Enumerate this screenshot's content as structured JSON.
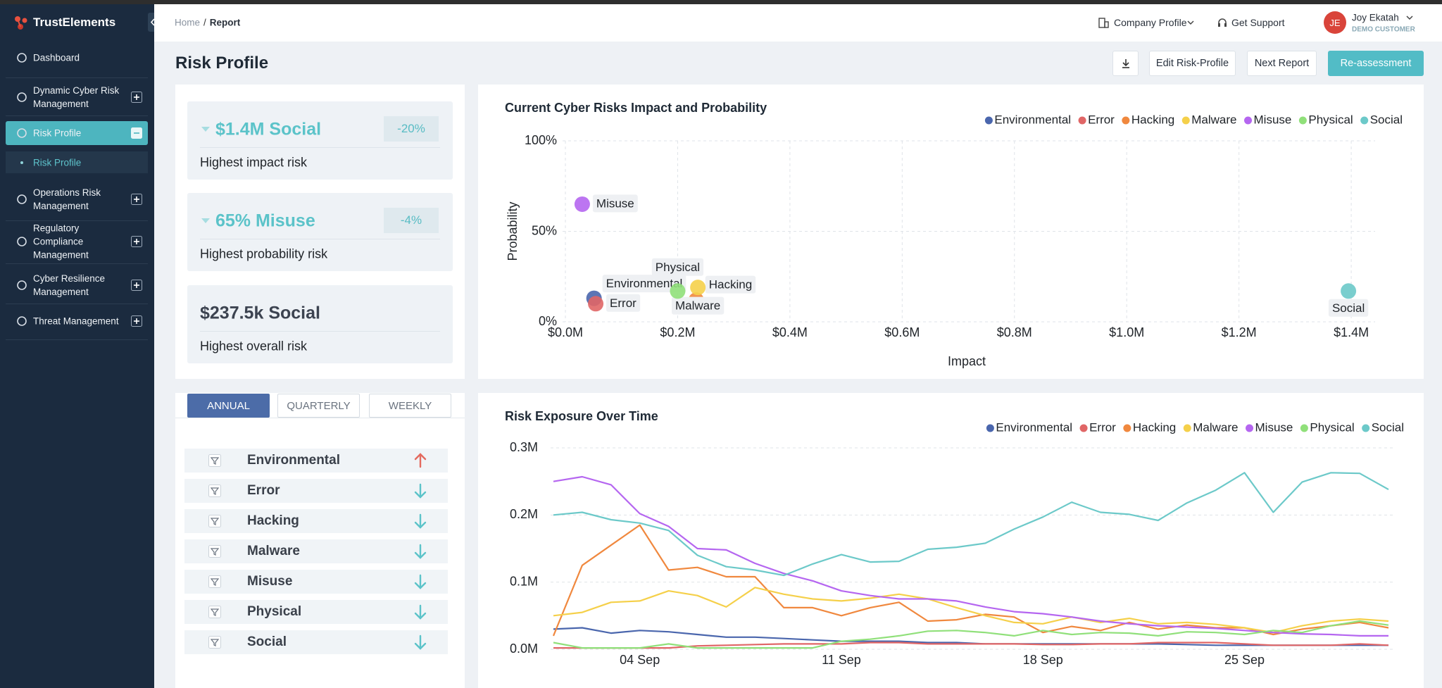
{
  "sidebar": {
    "brand": "TrustElements",
    "items": [
      {
        "label": "Dashboard",
        "expandable": false
      },
      {
        "label": "Dynamic Cyber Risk Management",
        "expandable": true
      },
      {
        "label": "Risk Profile",
        "expandable": true,
        "active": true,
        "subitems": [
          "Risk Profile"
        ]
      },
      {
        "label": "Operations Risk Management",
        "expandable": true
      },
      {
        "label": "Regulatory Compliance Management",
        "expandable": true
      },
      {
        "label": "Cyber Resilience Management",
        "expandable": true
      },
      {
        "label": "Threat Management",
        "expandable": true
      }
    ]
  },
  "header": {
    "breadcrumb": [
      "Home",
      "Report"
    ],
    "breadcrumb_separator": "/",
    "company_menu": "Company Profile",
    "support": "Get Support",
    "user": {
      "initials": "JE",
      "name": "Joy Ekatah",
      "role": "DEMO CUSTOMER"
    }
  },
  "title": "Risk Profile",
  "actions": [
    "Edit Risk-Profile",
    "Next Report",
    "Re-assessment"
  ],
  "summary_cards": [
    {
      "headline": "$1.4M Social",
      "change": "-20%",
      "caption": "Highest impact risk",
      "highlight": true
    },
    {
      "headline": "65% Misuse",
      "change": "-4%",
      "caption": "Highest probability risk",
      "highlight": true
    },
    {
      "headline": "$237.5k Social",
      "caption": "Highest overall risk",
      "highlight": false
    }
  ],
  "tabs": {
    "items": [
      "ANNUAL",
      "QUARTERLY",
      "WEEKLY"
    ],
    "active": 0
  },
  "risk_trends": [
    {
      "name": "Environmental",
      "trend": "up"
    },
    {
      "name": "Error",
      "trend": "down"
    },
    {
      "name": "Hacking",
      "trend": "down"
    },
    {
      "name": "Malware",
      "trend": "down"
    },
    {
      "name": "Misuse",
      "trend": "down"
    },
    {
      "name": "Physical",
      "trend": "down"
    },
    {
      "name": "Social",
      "trend": "down"
    }
  ],
  "chart_data": [
    {
      "type": "scatter",
      "title": "Current Cyber Risks Impact and Probability",
      "x_label": "Impact",
      "y_label": "Probability",
      "xlim": [
        0,
        1.43
      ],
      "ylim": [
        0,
        100
      ],
      "xticks": [
        {
          "value": 0,
          "label": "$0.0M"
        },
        {
          "value": 0.2,
          "label": "$0.2M"
        },
        {
          "value": 0.4,
          "label": "$0.4M"
        },
        {
          "value": 0.6,
          "label": "$0.6M"
        },
        {
          "value": 0.8,
          "label": "$0.8M"
        },
        {
          "value": 1.0,
          "label": "$1.0M"
        },
        {
          "value": 1.2,
          "label": "$1.2M"
        },
        {
          "value": 1.4,
          "label": "$1.4M"
        }
      ],
      "yticks": [
        {
          "value": 0,
          "label": "0%"
        },
        {
          "value": 50,
          "label": "50%"
        },
        {
          "value": 100,
          "label": "100%"
        }
      ],
      "grid": true,
      "legend": "top-right",
      "series": [
        {
          "name": "Environmental",
          "color": "#4a66ad",
          "x": [
            0.051
          ],
          "values": [
            13
          ]
        },
        {
          "name": "Error",
          "color": "#e06666",
          "x": [
            0.054
          ],
          "values": [
            10
          ]
        },
        {
          "name": "Hacking",
          "color": "#f0883e",
          "x": [
            0.233
          ],
          "values": [
            12
          ]
        },
        {
          "name": "Malware",
          "color": "#f5d04a",
          "x": [
            0.236
          ],
          "values": [
            19
          ]
        },
        {
          "name": "Misuse",
          "color": "#b566f0",
          "x": [
            0.03
          ],
          "values": [
            65
          ]
        },
        {
          "name": "Physical",
          "color": "#90e07a",
          "x": [
            0.2
          ],
          "values": [
            17
          ]
        },
        {
          "name": "Social",
          "color": "#6cc9c9",
          "x": [
            1.395
          ],
          "values": [
            17
          ]
        }
      ]
    },
    {
      "type": "line",
      "title": "Risk Exposure Over Time",
      "categories": [
        null,
        null,
        null,
        "04 Sep",
        null,
        null,
        null,
        null,
        null,
        null,
        "11 Sep",
        null,
        null,
        null,
        null,
        null,
        null,
        "18 Sep",
        null,
        null,
        null,
        null,
        null,
        null,
        "25 Sep",
        null,
        null,
        null,
        null,
        null
      ],
      "ylim": [
        0,
        0.3
      ],
      "yticks": [
        {
          "value": 0,
          "label": "0.0M"
        },
        {
          "value": 0.1,
          "label": "0.1M"
        },
        {
          "value": 0.2,
          "label": "0.2M"
        },
        {
          "value": 0.3,
          "label": "0.3M"
        }
      ],
      "grid": true,
      "legend": "top-right",
      "series": [
        {
          "name": "Environmental",
          "color": "#4a66ad",
          "values": [
            0.03,
            0.032,
            0.024,
            0.028,
            0.026,
            0.022,
            0.018,
            0.018,
            0.016,
            0.014,
            0.012,
            0.012,
            0.012,
            0.01,
            0.01,
            0.008,
            0.008,
            0.008,
            0.008,
            0.008,
            0.008,
            0.008,
            0.007,
            0.006,
            0.006,
            0.006,
            0.006,
            0.006,
            0.006,
            0.006
          ]
        },
        {
          "name": "Error",
          "color": "#e06666",
          "values": [
            0.002,
            0.002,
            0.002,
            0.002,
            0.002,
            0.005,
            0.006,
            0.007,
            0.008,
            0.008,
            0.008,
            0.01,
            0.01,
            0.008,
            0.008,
            0.008,
            0.008,
            0.007,
            0.007,
            0.008,
            0.008,
            0.01,
            0.01,
            0.01,
            0.008,
            0.006,
            0.006,
            0.006,
            0.008,
            0.006
          ]
        },
        {
          "name": "Hacking",
          "color": "#f0883e",
          "values": [
            0.02,
            0.125,
            0.155,
            0.185,
            0.118,
            0.122,
            0.108,
            0.108,
            0.062,
            0.062,
            0.05,
            0.062,
            0.07,
            0.042,
            0.044,
            0.052,
            0.048,
            0.025,
            0.034,
            0.028,
            0.04,
            0.03,
            0.036,
            0.032,
            0.032,
            0.022,
            0.03,
            0.035,
            0.04,
            0.032
          ]
        },
        {
          "name": "Malware",
          "color": "#f5d04a",
          "values": [
            0.05,
            0.055,
            0.07,
            0.072,
            0.087,
            0.08,
            0.063,
            0.092,
            0.082,
            0.075,
            0.072,
            0.076,
            0.082,
            0.075,
            0.062,
            0.05,
            0.04,
            0.038,
            0.048,
            0.04,
            0.046,
            0.038,
            0.04,
            0.037,
            0.032,
            0.025,
            0.035,
            0.042,
            0.045,
            0.042
          ]
        },
        {
          "name": "Misuse",
          "color": "#b566f0",
          "values": [
            0.25,
            0.257,
            0.245,
            0.202,
            0.183,
            0.15,
            0.148,
            0.128,
            0.113,
            0.102,
            0.087,
            0.08,
            0.075,
            0.075,
            0.072,
            0.063,
            0.056,
            0.053,
            0.048,
            0.042,
            0.038,
            0.035,
            0.033,
            0.031,
            0.028,
            0.025,
            0.023,
            0.022,
            0.02,
            0.02
          ]
        },
        {
          "name": "Physical",
          "color": "#90e07a",
          "values": [
            0.01,
            0.002,
            0.002,
            0.002,
            0.008,
            0.002,
            0.002,
            0.002,
            0.002,
            0.002,
            0.012,
            0.015,
            0.02,
            0.027,
            0.028,
            0.025,
            0.02,
            0.028,
            0.022,
            0.025,
            0.024,
            0.02,
            0.026,
            0.025,
            0.022,
            0.028,
            0.025,
            0.035,
            0.042,
            0.036
          ]
        },
        {
          "name": "Social",
          "color": "#6cc9c9",
          "values": [
            0.2,
            0.204,
            0.193,
            0.188,
            0.177,
            0.14,
            0.123,
            0.118,
            0.11,
            0.127,
            0.141,
            0.13,
            0.131,
            0.149,
            0.152,
            0.158,
            0.179,
            0.197,
            0.219,
            0.204,
            0.201,
            0.192,
            0.218,
            0.237,
            0.263,
            0.204,
            0.249,
            0.263,
            0.262,
            0.238
          ]
        }
      ]
    }
  ]
}
